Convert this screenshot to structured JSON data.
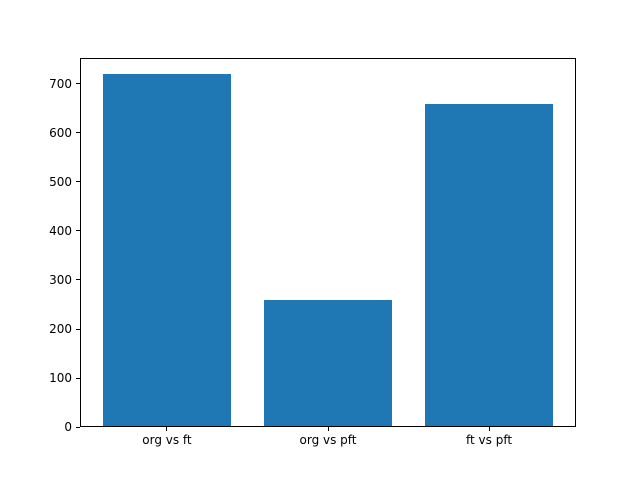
{
  "chart_data": {
    "type": "bar",
    "categories": [
      "org vs ft",
      "org vs pft",
      "ft vs pft"
    ],
    "values": [
      717,
      257,
      656
    ],
    "title": "",
    "xlabel": "",
    "ylabel": "",
    "ylim": [
      0,
      753
    ],
    "yticks": [
      0,
      100,
      200,
      300,
      400,
      500,
      600,
      700
    ],
    "bar_color": "#1f77b4",
    "axis_color": "#000000",
    "grid": false,
    "legend": null
  }
}
